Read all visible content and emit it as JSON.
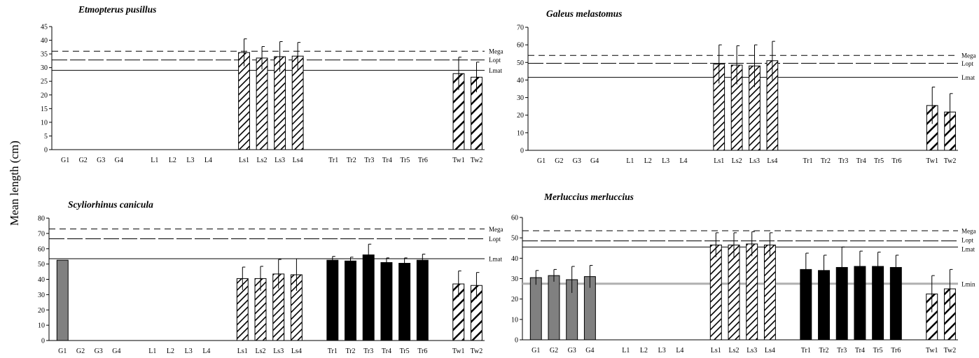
{
  "figure": {
    "shared_ylabel": "Mean length (cm)"
  },
  "colors": {
    "grey_bar": "#808080",
    "black_bar": "#000000",
    "hatch": "#000000",
    "mega_line": "#000000",
    "lmin_line": "#b0b0b0"
  },
  "chart_data": [
    {
      "type": "bar",
      "title": "Etmopterus pusillus",
      "xlabel": "",
      "ylabel": "",
      "ylim": [
        0,
        45
      ],
      "yticks": [
        0,
        5,
        10,
        15,
        20,
        25,
        30,
        35,
        40,
        45
      ],
      "categories": [
        "G1",
        "G2",
        "G3",
        "G4",
        "L1",
        "L2",
        "L3",
        "L4",
        "Ls1",
        "Ls2",
        "Ls3",
        "Ls4",
        "Tr1",
        "Tr2",
        "Tr3",
        "Tr4",
        "Tr5",
        "Tr6",
        "Tw1",
        "Tw2"
      ],
      "values": [
        null,
        null,
        null,
        null,
        null,
        null,
        null,
        null,
        35.5,
        33.5,
        34,
        34.2,
        null,
        null,
        null,
        null,
        null,
        null,
        27.8,
        26.5
      ],
      "errors": [
        null,
        null,
        null,
        null,
        null,
        null,
        null,
        null,
        5,
        4.2,
        5.5,
        5,
        null,
        null,
        null,
        null,
        null,
        null,
        6,
        5.5
      ],
      "reference_lines": [
        {
          "label": "Mega",
          "value": 36,
          "style": "dashed"
        },
        {
          "label": "Lopt",
          "value": 32.8,
          "style": "longdash"
        },
        {
          "label": "Lmat",
          "value": 29,
          "style": "solid"
        }
      ],
      "grid": false
    },
    {
      "type": "bar",
      "title": "Galeus melastomus",
      "xlabel": "",
      "ylabel": "",
      "ylim": [
        0,
        70
      ],
      "yticks": [
        0,
        10,
        20,
        30,
        40,
        50,
        60,
        70
      ],
      "categories": [
        "G1",
        "G2",
        "G3",
        "G4",
        "L1",
        "L2",
        "L3",
        "L4",
        "Ls1",
        "Ls2",
        "Ls3",
        "Ls4",
        "Tr1",
        "Tr2",
        "Tr3",
        "Tr4",
        "Tr5",
        "Tr6",
        "Tw1",
        "Tw2"
      ],
      "values": [
        null,
        null,
        null,
        null,
        null,
        null,
        null,
        null,
        49,
        48.5,
        48,
        51,
        null,
        null,
        null,
        null,
        null,
        null,
        25.5,
        21.8
      ],
      "errors": [
        null,
        null,
        null,
        null,
        null,
        null,
        null,
        null,
        11,
        11,
        12,
        11,
        null,
        null,
        null,
        null,
        null,
        null,
        10.5,
        10.5
      ],
      "reference_lines": [
        {
          "label": "Mega",
          "value": 54,
          "style": "dashed"
        },
        {
          "label": "Lopt",
          "value": 49.5,
          "style": "longdash"
        },
        {
          "label": "Lmat",
          "value": 41.5,
          "style": "solid"
        }
      ],
      "grid": false
    },
    {
      "type": "bar",
      "title": "Scyliorhinus canicula",
      "xlabel": "",
      "ylabel": "",
      "ylim": [
        0,
        80
      ],
      "yticks": [
        0,
        10,
        20,
        30,
        40,
        50,
        60,
        70,
        80
      ],
      "categories": [
        "G1",
        "G2",
        "G3",
        "G4",
        "L1",
        "L2",
        "L3",
        "L4",
        "Ls1",
        "Ls2",
        "Ls3",
        "Ls4",
        "Tr1",
        "Tr2",
        "Tr3",
        "Tr4",
        "Tr5",
        "Tr6",
        "Tw1",
        "Tw2"
      ],
      "values": [
        52.5,
        null,
        null,
        null,
        null,
        null,
        null,
        null,
        40.5,
        40.5,
        43.5,
        43,
        52.5,
        52,
        56,
        51,
        50.5,
        52.5,
        37,
        36
      ],
      "errors": [
        null,
        null,
        null,
        null,
        null,
        null,
        null,
        null,
        7.5,
        8,
        9.5,
        10.5,
        2.5,
        2.5,
        7,
        3,
        3.5,
        4,
        8.5,
        8.5
      ],
      "reference_lines": [
        {
          "label": "Mega",
          "value": 73,
          "style": "dashed"
        },
        {
          "label": "Lopt",
          "value": 66.5,
          "style": "longdash"
        },
        {
          "label": "Lmat",
          "value": 53.5,
          "style": "solid"
        }
      ],
      "grid": false
    },
    {
      "type": "bar",
      "title": "Merluccius merluccius",
      "xlabel": "",
      "ylabel": "",
      "ylim": [
        0,
        60
      ],
      "yticks": [
        0,
        10,
        20,
        30,
        40,
        50,
        60
      ],
      "categories": [
        "G1",
        "G2",
        "G3",
        "G4",
        "L1",
        "L2",
        "L3",
        "L4",
        "Ls1",
        "Ls2",
        "Ls3",
        "Ls4",
        "Tr1",
        "Tr2",
        "Tr3",
        "Tr4",
        "Tr5",
        "Tr6",
        "Tw1",
        "Tw2"
      ],
      "values": [
        30.5,
        31.5,
        29.5,
        31,
        null,
        null,
        null,
        null,
        46.5,
        46.5,
        47,
        46.5,
        34.5,
        34,
        35.5,
        36,
        36,
        35.5,
        22.5,
        25
      ],
      "errors": [
        3.5,
        3,
        6.5,
        5.5,
        null,
        null,
        null,
        null,
        6,
        6,
        6,
        6,
        8,
        7.5,
        10,
        7.5,
        7,
        6,
        9,
        9.5
      ],
      "reference_lines": [
        {
          "label": "Mega",
          "value": 53.5,
          "style": "dashed"
        },
        {
          "label": "Lopt",
          "value": 48.5,
          "style": "longdash"
        },
        {
          "label": "Lmat",
          "value": 45.5,
          "style": "solid"
        },
        {
          "label": "Lmin",
          "value": 27.5,
          "style": "solid-grey"
        }
      ],
      "grid": false
    }
  ]
}
